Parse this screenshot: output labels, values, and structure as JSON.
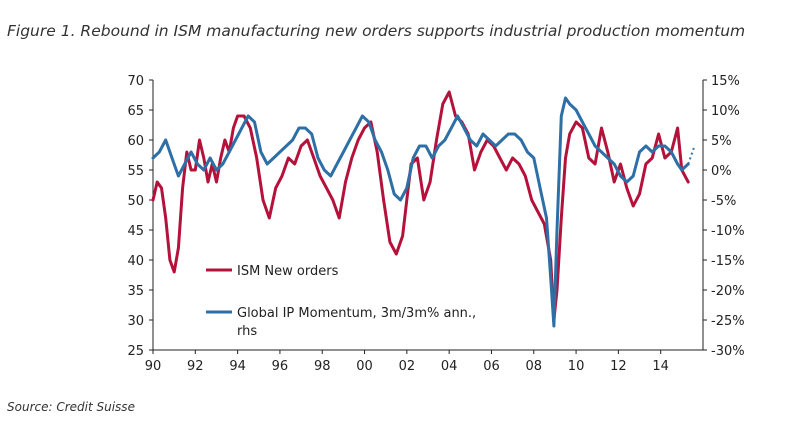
{
  "title": "Figure 1. Rebound in ISM manufacturing new orders supports industrial production momentum",
  "source": "Source: Credit Suisse",
  "colors": {
    "ism": "#b5123b",
    "ip": "#2e6fa6",
    "axis": "#222222"
  },
  "chart_data": {
    "type": "line",
    "x_tick_labels": [
      "90",
      "92",
      "94",
      "96",
      "98",
      "00",
      "02",
      "04",
      "06",
      "08",
      "10",
      "12",
      "14"
    ],
    "x_tick_years": [
      1990,
      1992,
      1994,
      1996,
      1998,
      2000,
      2002,
      2004,
      2006,
      2008,
      2010,
      2012,
      2014
    ],
    "xlim": [
      1990,
      2016
    ],
    "y_left": {
      "ticks": [
        "25",
        "30",
        "35",
        "40",
        "45",
        "50",
        "55",
        "60",
        "65",
        "70"
      ],
      "ylim": [
        25,
        70
      ]
    },
    "y_right": {
      "ticks": [
        "-30%",
        "-25%",
        "-20%",
        "-15%",
        "-10%",
        "-5%",
        "0%",
        "5%",
        "10%",
        "15%"
      ],
      "ylim": [
        -30,
        15
      ]
    },
    "legend": {
      "ism_label": "ISM New orders",
      "ip_label_1": "Global IP Momentum, 3m/3m% ann.,",
      "ip_label_2": "rhs"
    },
    "series": [
      {
        "name": "ISM New orders",
        "axis": "left",
        "color": "#b5123b",
        "x": [
          1990.0,
          1990.2,
          1990.4,
          1990.6,
          1990.8,
          1991.0,
          1991.2,
          1991.4,
          1991.6,
          1991.8,
          1992.0,
          1992.2,
          1992.4,
          1992.6,
          1992.8,
          1993.0,
          1993.2,
          1993.4,
          1993.6,
          1993.8,
          1994.0,
          1994.3,
          1994.6,
          1994.9,
          1995.2,
          1995.5,
          1995.8,
          1996.1,
          1996.4,
          1996.7,
          1997.0,
          1997.3,
          1997.6,
          1997.9,
          1998.2,
          1998.5,
          1998.8,
          1999.1,
          1999.4,
          1999.7,
          2000.0,
          2000.3,
          2000.6,
          2000.9,
          2001.2,
          2001.5,
          2001.8,
          2002.0,
          2002.2,
          2002.5,
          2002.8,
          2003.1,
          2003.4,
          2003.7,
          2004.0,
          2004.3,
          2004.6,
          2004.9,
          2005.2,
          2005.5,
          2005.8,
          2006.1,
          2006.4,
          2006.7,
          2007.0,
          2007.3,
          2007.6,
          2007.9,
          2008.2,
          2008.5,
          2008.8,
          2008.95,
          2009.1,
          2009.3,
          2009.5,
          2009.7,
          2010.0,
          2010.3,
          2010.6,
          2010.9,
          2011.2,
          2011.5,
          2011.8,
          2012.1,
          2012.4,
          2012.7,
          2013.0,
          2013.3,
          2013.6,
          2013.9,
          2014.2,
          2014.5,
          2014.8,
          2015.0,
          2015.3
        ],
        "y": [
          50,
          53,
          52,
          47,
          40,
          38,
          42,
          52,
          58,
          55,
          55,
          60,
          57,
          53,
          56,
          53,
          57,
          60,
          58,
          62,
          64,
          64,
          62,
          57,
          50,
          47,
          52,
          54,
          57,
          56,
          59,
          60,
          57,
          54,
          52,
          50,
          47,
          53,
          57,
          60,
          62,
          63,
          58,
          50,
          43,
          41,
          44,
          50,
          56,
          57,
          50,
          53,
          60,
          66,
          68,
          64,
          63,
          61,
          55,
          58,
          60,
          59,
          57,
          55,
          57,
          56,
          54,
          50,
          48,
          46,
          40,
          30,
          35,
          47,
          57,
          61,
          63,
          62,
          57,
          56,
          62,
          58,
          53,
          56,
          52,
          49,
          51,
          56,
          57,
          61,
          57,
          58,
          62,
          55,
          53
        ]
      },
      {
        "name": "Global IP Momentum, 3m/3m% ann., rhs",
        "axis": "right",
        "color": "#2e6fa6",
        "x": [
          1990.0,
          1990.3,
          1990.6,
          1990.9,
          1991.2,
          1991.5,
          1991.8,
          1992.1,
          1992.4,
          1992.7,
          1993.0,
          1993.3,
          1993.6,
          1993.9,
          1994.2,
          1994.5,
          1994.8,
          1995.1,
          1995.4,
          1995.7,
          1996.0,
          1996.3,
          1996.6,
          1996.9,
          1997.2,
          1997.5,
          1997.8,
          1998.1,
          1998.4,
          1998.7,
          1999.0,
          1999.3,
          1999.6,
          1999.9,
          2000.2,
          2000.5,
          2000.8,
          2001.1,
          2001.4,
          2001.7,
          2002.0,
          2002.3,
          2002.6,
          2002.9,
          2003.2,
          2003.5,
          2003.8,
          2004.1,
          2004.4,
          2004.7,
          2005.0,
          2005.3,
          2005.6,
          2005.9,
          2006.2,
          2006.5,
          2006.8,
          2007.1,
          2007.4,
          2007.7,
          2008.0,
          2008.3,
          2008.6,
          2008.8,
          2008.95,
          2009.1,
          2009.3,
          2009.5,
          2009.7,
          2010.0,
          2010.3,
          2010.6,
          2010.9,
          2011.2,
          2011.5,
          2011.8,
          2012.1,
          2012.4,
          2012.7,
          2013.0,
          2013.3,
          2013.6,
          2013.9,
          2014.2,
          2014.5,
          2014.8,
          2015.0,
          2015.3
        ],
        "y": [
          2,
          3,
          5,
          2,
          -1,
          1,
          3,
          1,
          0,
          2,
          0,
          1,
          3,
          5,
          7,
          9,
          8,
          3,
          1,
          2,
          3,
          4,
          5,
          7,
          7,
          6,
          2,
          0,
          -1,
          1,
          3,
          5,
          7,
          9,
          8,
          5,
          3,
          0,
          -4,
          -5,
          -3,
          2,
          4,
          4,
          2,
          4,
          5,
          7,
          9,
          7,
          5,
          4,
          6,
          5,
          4,
          5,
          6,
          6,
          5,
          3,
          2,
          -3,
          -8,
          -18,
          -26,
          -10,
          9,
          12,
          11,
          10,
          8,
          6,
          4,
          3,
          2,
          1,
          -1,
          -2,
          -1,
          3,
          4,
          3,
          4,
          4,
          3,
          1,
          0,
          1
        ]
      }
    ],
    "ip_forecast": {
      "x": [
        2015.3,
        2015.6
      ],
      "y": [
        1,
        4
      ]
    }
  }
}
